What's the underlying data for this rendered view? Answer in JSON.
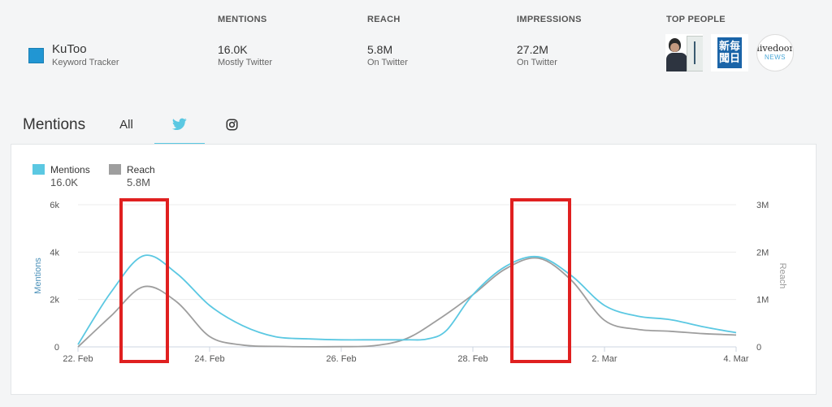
{
  "tracker": {
    "name": "KuToo",
    "subtitle": "Keyword Tracker",
    "color": "#2196d3"
  },
  "stats": [
    {
      "label": "MENTIONS",
      "value": "16.0K",
      "sub": "Mostly Twitter"
    },
    {
      "label": "REACH",
      "value": "5.8M",
      "sub": "On Twitter"
    },
    {
      "label": "IMPRESSIONS",
      "value": "27.2M",
      "sub": "On Twitter"
    }
  ],
  "top_people": {
    "label": "TOP PEOPLE",
    "people": [
      {
        "name": "author-portrait"
      },
      {
        "name": "mainichi-logo",
        "text_line1": "新毎",
        "text_line2": "聞日"
      },
      {
        "name": "livedoor-news-logo",
        "text_line1": "livedoor",
        "text_line2": "NEWS"
      }
    ]
  },
  "tabs": {
    "title": "Mentions",
    "items": [
      {
        "label": "All",
        "active": false
      },
      {
        "label": "",
        "icon": "twitter-icon",
        "active": true
      },
      {
        "label": "",
        "icon": "instagram-icon",
        "active": false
      }
    ]
  },
  "chart_data": {
    "type": "line",
    "legend": [
      {
        "name": "Mentions",
        "value": "16.0K",
        "color": "#5bc8e2"
      },
      {
        "name": "Reach",
        "value": "5.8M",
        "color": "#9e9e9e"
      }
    ],
    "xlabel": "",
    "ylabel_left": "Mentions",
    "ylabel_right": "Reach",
    "x_ticks": [
      {
        "x": 0,
        "label": "22. Feb"
      },
      {
        "x": 2,
        "label": "24. Feb"
      },
      {
        "x": 4,
        "label": "26. Feb"
      },
      {
        "x": 6,
        "label": "28. Feb"
      },
      {
        "x": 8,
        "label": "2. Mar"
      },
      {
        "x": 10,
        "label": "4. Mar"
      }
    ],
    "xlim": [
      0,
      10
    ],
    "y_left_ticks": [
      {
        "v": 0,
        "label": "0"
      },
      {
        "v": 2000,
        "label": "2k"
      },
      {
        "v": 4000,
        "label": "4k"
      },
      {
        "v": 6000,
        "label": "6k"
      }
    ],
    "y_left_lim": [
      0,
      6000
    ],
    "y_right_ticks": [
      {
        "v": 0,
        "label": "0"
      },
      {
        "v": 1000000,
        "label": "1M"
      },
      {
        "v": 2000000,
        "label": "2M"
      },
      {
        "v": 3000000,
        "label": "3M"
      }
    ],
    "y_right_lim": [
      0,
      3000000
    ],
    "grid": true,
    "series": [
      {
        "name": "Mentions",
        "axis": "left",
        "color": "#5bc8e2",
        "points": [
          [
            0,
            100
          ],
          [
            0.5,
            2300
          ],
          [
            1,
            3850
          ],
          [
            1.5,
            3100
          ],
          [
            2,
            1750
          ],
          [
            2.5,
            900
          ],
          [
            3,
            430
          ],
          [
            3.5,
            340
          ],
          [
            4,
            300
          ],
          [
            4.5,
            300
          ],
          [
            5,
            300
          ],
          [
            5.3,
            330
          ],
          [
            5.6,
            700
          ],
          [
            6,
            2200
          ],
          [
            6.5,
            3400
          ],
          [
            7,
            3800
          ],
          [
            7.5,
            3000
          ],
          [
            8,
            1750
          ],
          [
            8.5,
            1300
          ],
          [
            9,
            1150
          ],
          [
            9.5,
            850
          ],
          [
            10,
            600
          ]
        ]
      },
      {
        "name": "Reach",
        "axis": "right",
        "color": "#9e9e9e",
        "points": [
          [
            0,
            0
          ],
          [
            0.5,
            650000
          ],
          [
            1,
            1270000
          ],
          [
            1.5,
            950000
          ],
          [
            2,
            220000
          ],
          [
            2.5,
            40000
          ],
          [
            3,
            10000
          ],
          [
            4,
            5000
          ],
          [
            4.5,
            25000
          ],
          [
            5,
            180000
          ],
          [
            5.5,
            600000
          ],
          [
            6,
            1100000
          ],
          [
            6.5,
            1650000
          ],
          [
            7,
            1870000
          ],
          [
            7.5,
            1400000
          ],
          [
            8,
            560000
          ],
          [
            8.5,
            370000
          ],
          [
            9,
            330000
          ],
          [
            9.5,
            280000
          ],
          [
            10,
            250000
          ]
        ]
      }
    ]
  }
}
